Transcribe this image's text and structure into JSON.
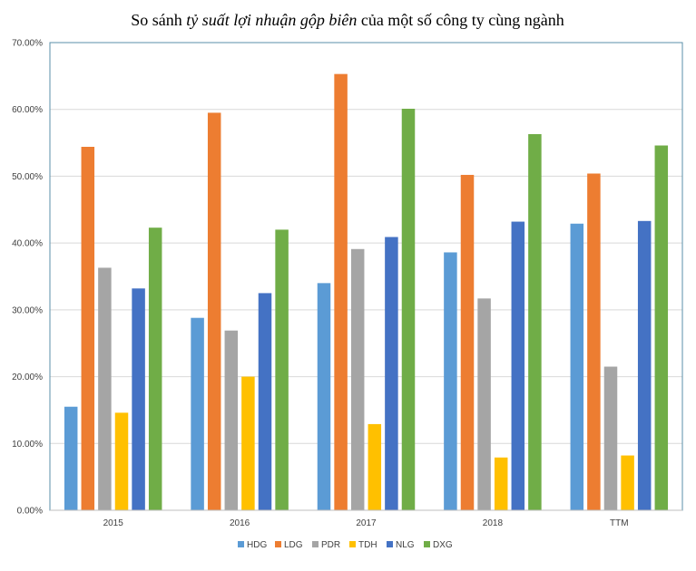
{
  "chart_data": {
    "type": "bar",
    "title_parts": [
      {
        "text": "So sánh ",
        "italic": false
      },
      {
        "text": "tỷ suất lợi nhuận gộp biên",
        "italic": true
      },
      {
        "text": " của một số công ty cùng ngành",
        "italic": false
      }
    ],
    "categories": [
      "2015",
      "2016",
      "2017",
      "2018",
      "TTM"
    ],
    "series": [
      {
        "name": "HDG",
        "color": "#5B9BD5",
        "values": [
          15.5,
          28.8,
          34.0,
          38.6,
          42.9
        ]
      },
      {
        "name": "LDG",
        "color": "#ED7D31",
        "values": [
          54.4,
          59.5,
          65.3,
          50.2,
          50.4
        ]
      },
      {
        "name": "PDR",
        "color": "#A5A5A5",
        "values": [
          36.3,
          26.9,
          39.1,
          31.7,
          21.5
        ]
      },
      {
        "name": "TDH",
        "color": "#FFC000",
        "values": [
          14.6,
          20.0,
          12.9,
          7.9,
          8.2
        ]
      },
      {
        "name": "NLG",
        "color": "#4472C4",
        "values": [
          33.2,
          32.5,
          40.9,
          43.2,
          43.3
        ]
      },
      {
        "name": "DXG",
        "color": "#70AD47",
        "values": [
          42.3,
          42.0,
          60.1,
          56.3,
          54.6
        ]
      }
    ],
    "ylim": [
      0,
      70
    ],
    "yticks": [
      "0.00%",
      "10.00%",
      "20.00%",
      "30.00%",
      "40.00%",
      "50.00%",
      "60.00%",
      "70.00%"
    ],
    "ytick_values": [
      0,
      10,
      20,
      30,
      40,
      50,
      60,
      70
    ],
    "xlabel": "",
    "ylabel": "",
    "grid": true,
    "legend": "bottom"
  }
}
